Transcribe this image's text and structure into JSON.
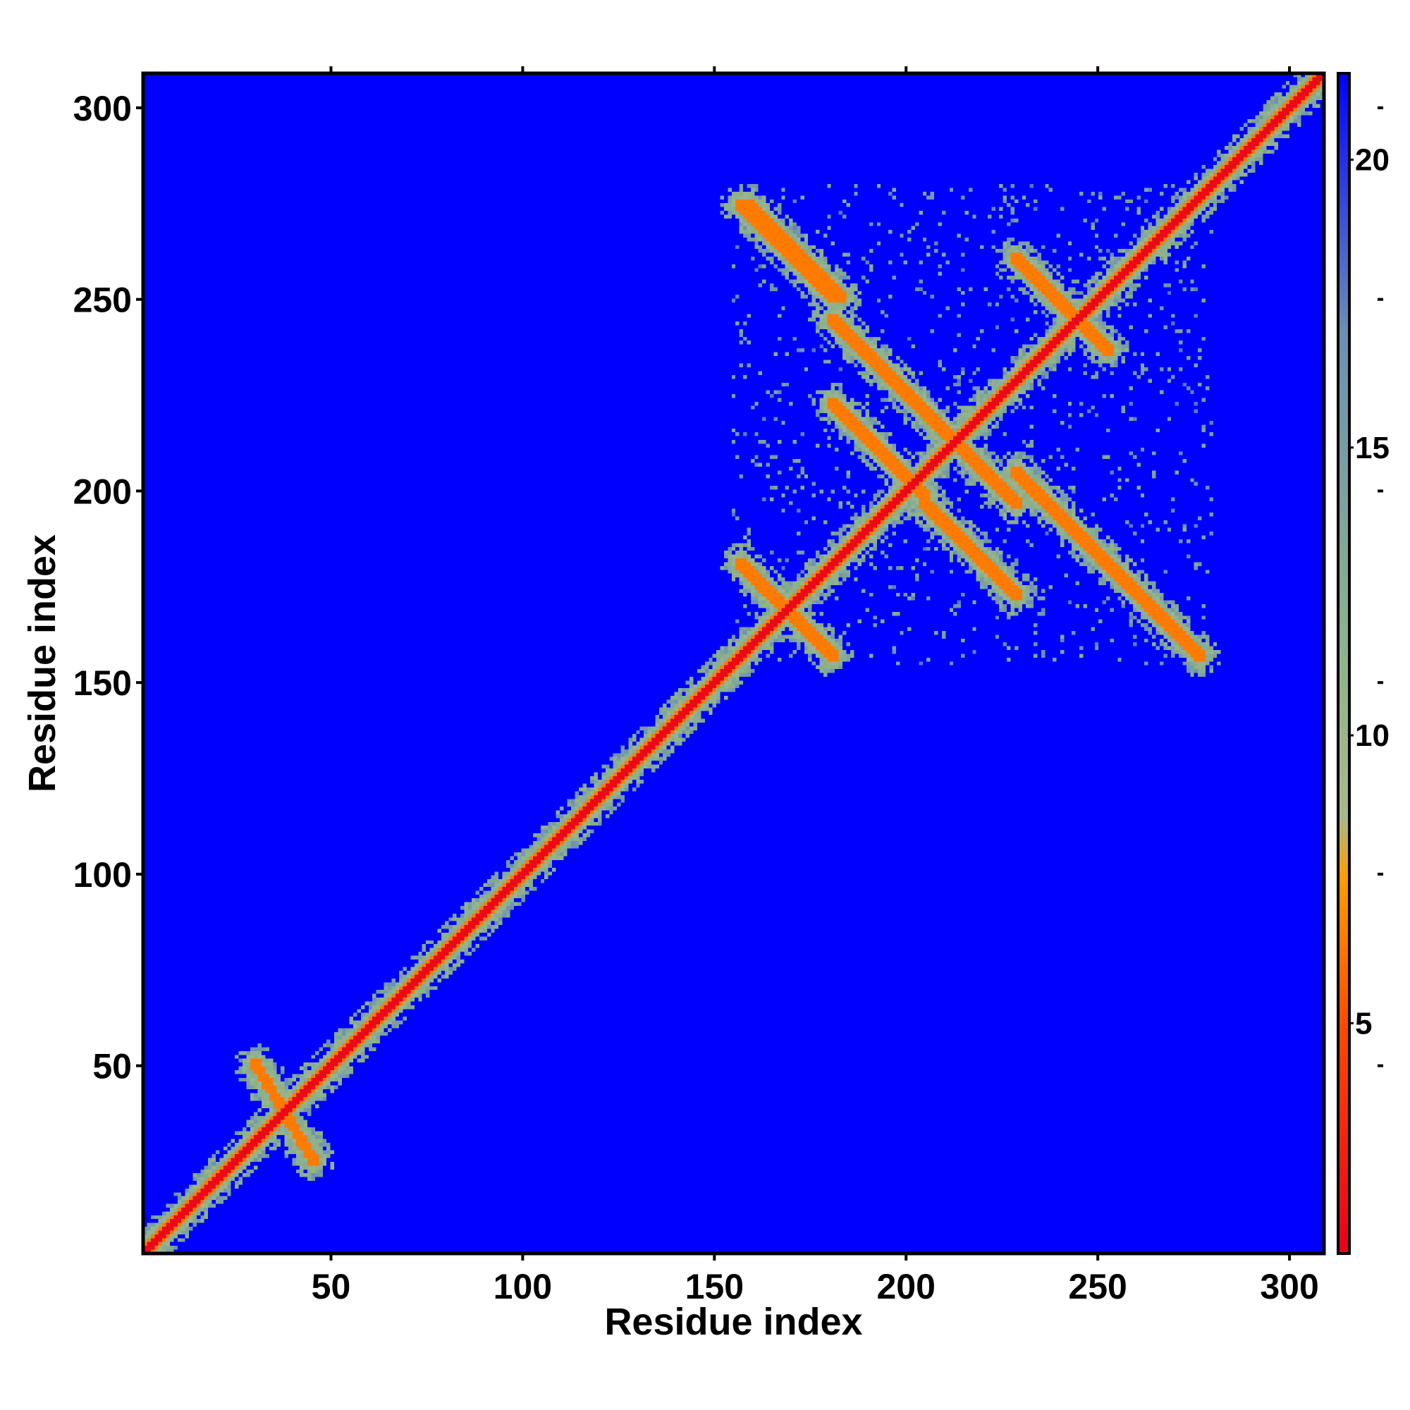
{
  "chart_data": {
    "type": "heatmap",
    "title": "",
    "xlabel": "Residue index",
    "ylabel": "Residue index",
    "xlim": [
      1,
      309
    ],
    "ylim": [
      1,
      309
    ],
    "x_ticks": [
      50,
      100,
      150,
      200,
      250,
      300
    ],
    "y_ticks": [
      50,
      100,
      150,
      200,
      250,
      300
    ],
    "grid": false,
    "colorbar": {
      "range": [
        1,
        21.5
      ],
      "ticks": [
        5,
        10,
        15,
        20
      ],
      "stops": [
        {
          "value": 1,
          "color": "#e8001a"
        },
        {
          "value": 5,
          "color": "#ff4a00"
        },
        {
          "value": 7.5,
          "color": "#ff9c00"
        },
        {
          "value": 8.6,
          "color": "#a8b98a"
        },
        {
          "value": 12,
          "color": "#8ab08e"
        },
        {
          "value": 17,
          "color": "#6d8fb4"
        },
        {
          "value": 21.5,
          "color": "#0000ff"
        }
      ],
      "background_color": "#0000ff"
    },
    "structure": {
      "diagonal": {
        "from": 1,
        "to": 309
      },
      "contact_bands": [
        {
          "name": "main-diagonal",
          "start": [
            1,
            1
          ],
          "end": [
            309,
            309
          ]
        },
        {
          "name": "antiparallel-1",
          "start": [
            157,
            181
          ],
          "end": [
            181,
            157
          ]
        },
        {
          "name": "antiparallel-2",
          "start": [
            157,
            275
          ],
          "end": [
            181,
            251
          ]
        },
        {
          "name": "antiparallel-3",
          "start": [
            181,
            245
          ],
          "end": [
            205,
            221
          ]
        },
        {
          "name": "antiparallel-4",
          "start": [
            181,
            223
          ],
          "end": [
            205,
            199
          ]
        },
        {
          "name": "antiparallel-5",
          "start": [
            205,
            221
          ],
          "end": [
            229,
            197
          ]
        },
        {
          "name": "antiparallel-6",
          "start": [
            205,
            197
          ],
          "end": [
            229,
            173
          ]
        },
        {
          "name": "antiparallel-7",
          "start": [
            229,
            261
          ],
          "end": [
            253,
            237
          ]
        },
        {
          "name": "antiparallel-8",
          "start": [
            229,
            205
          ],
          "end": [
            253,
            181
          ]
        },
        {
          "name": "antiparallel-9",
          "start": [
            253,
            181
          ],
          "end": [
            277,
            157
          ]
        },
        {
          "name": "antiparallel-10",
          "start": [
            159,
            275
          ],
          "end": [
            183,
            251
          ]
        },
        {
          "name": "antiparallel-11",
          "start": [
            30,
            50
          ],
          "end": [
            45,
            25
          ]
        }
      ],
      "block_region": {
        "x": [
          155,
          280
        ],
        "y": [
          155,
          280
        ]
      }
    }
  }
}
